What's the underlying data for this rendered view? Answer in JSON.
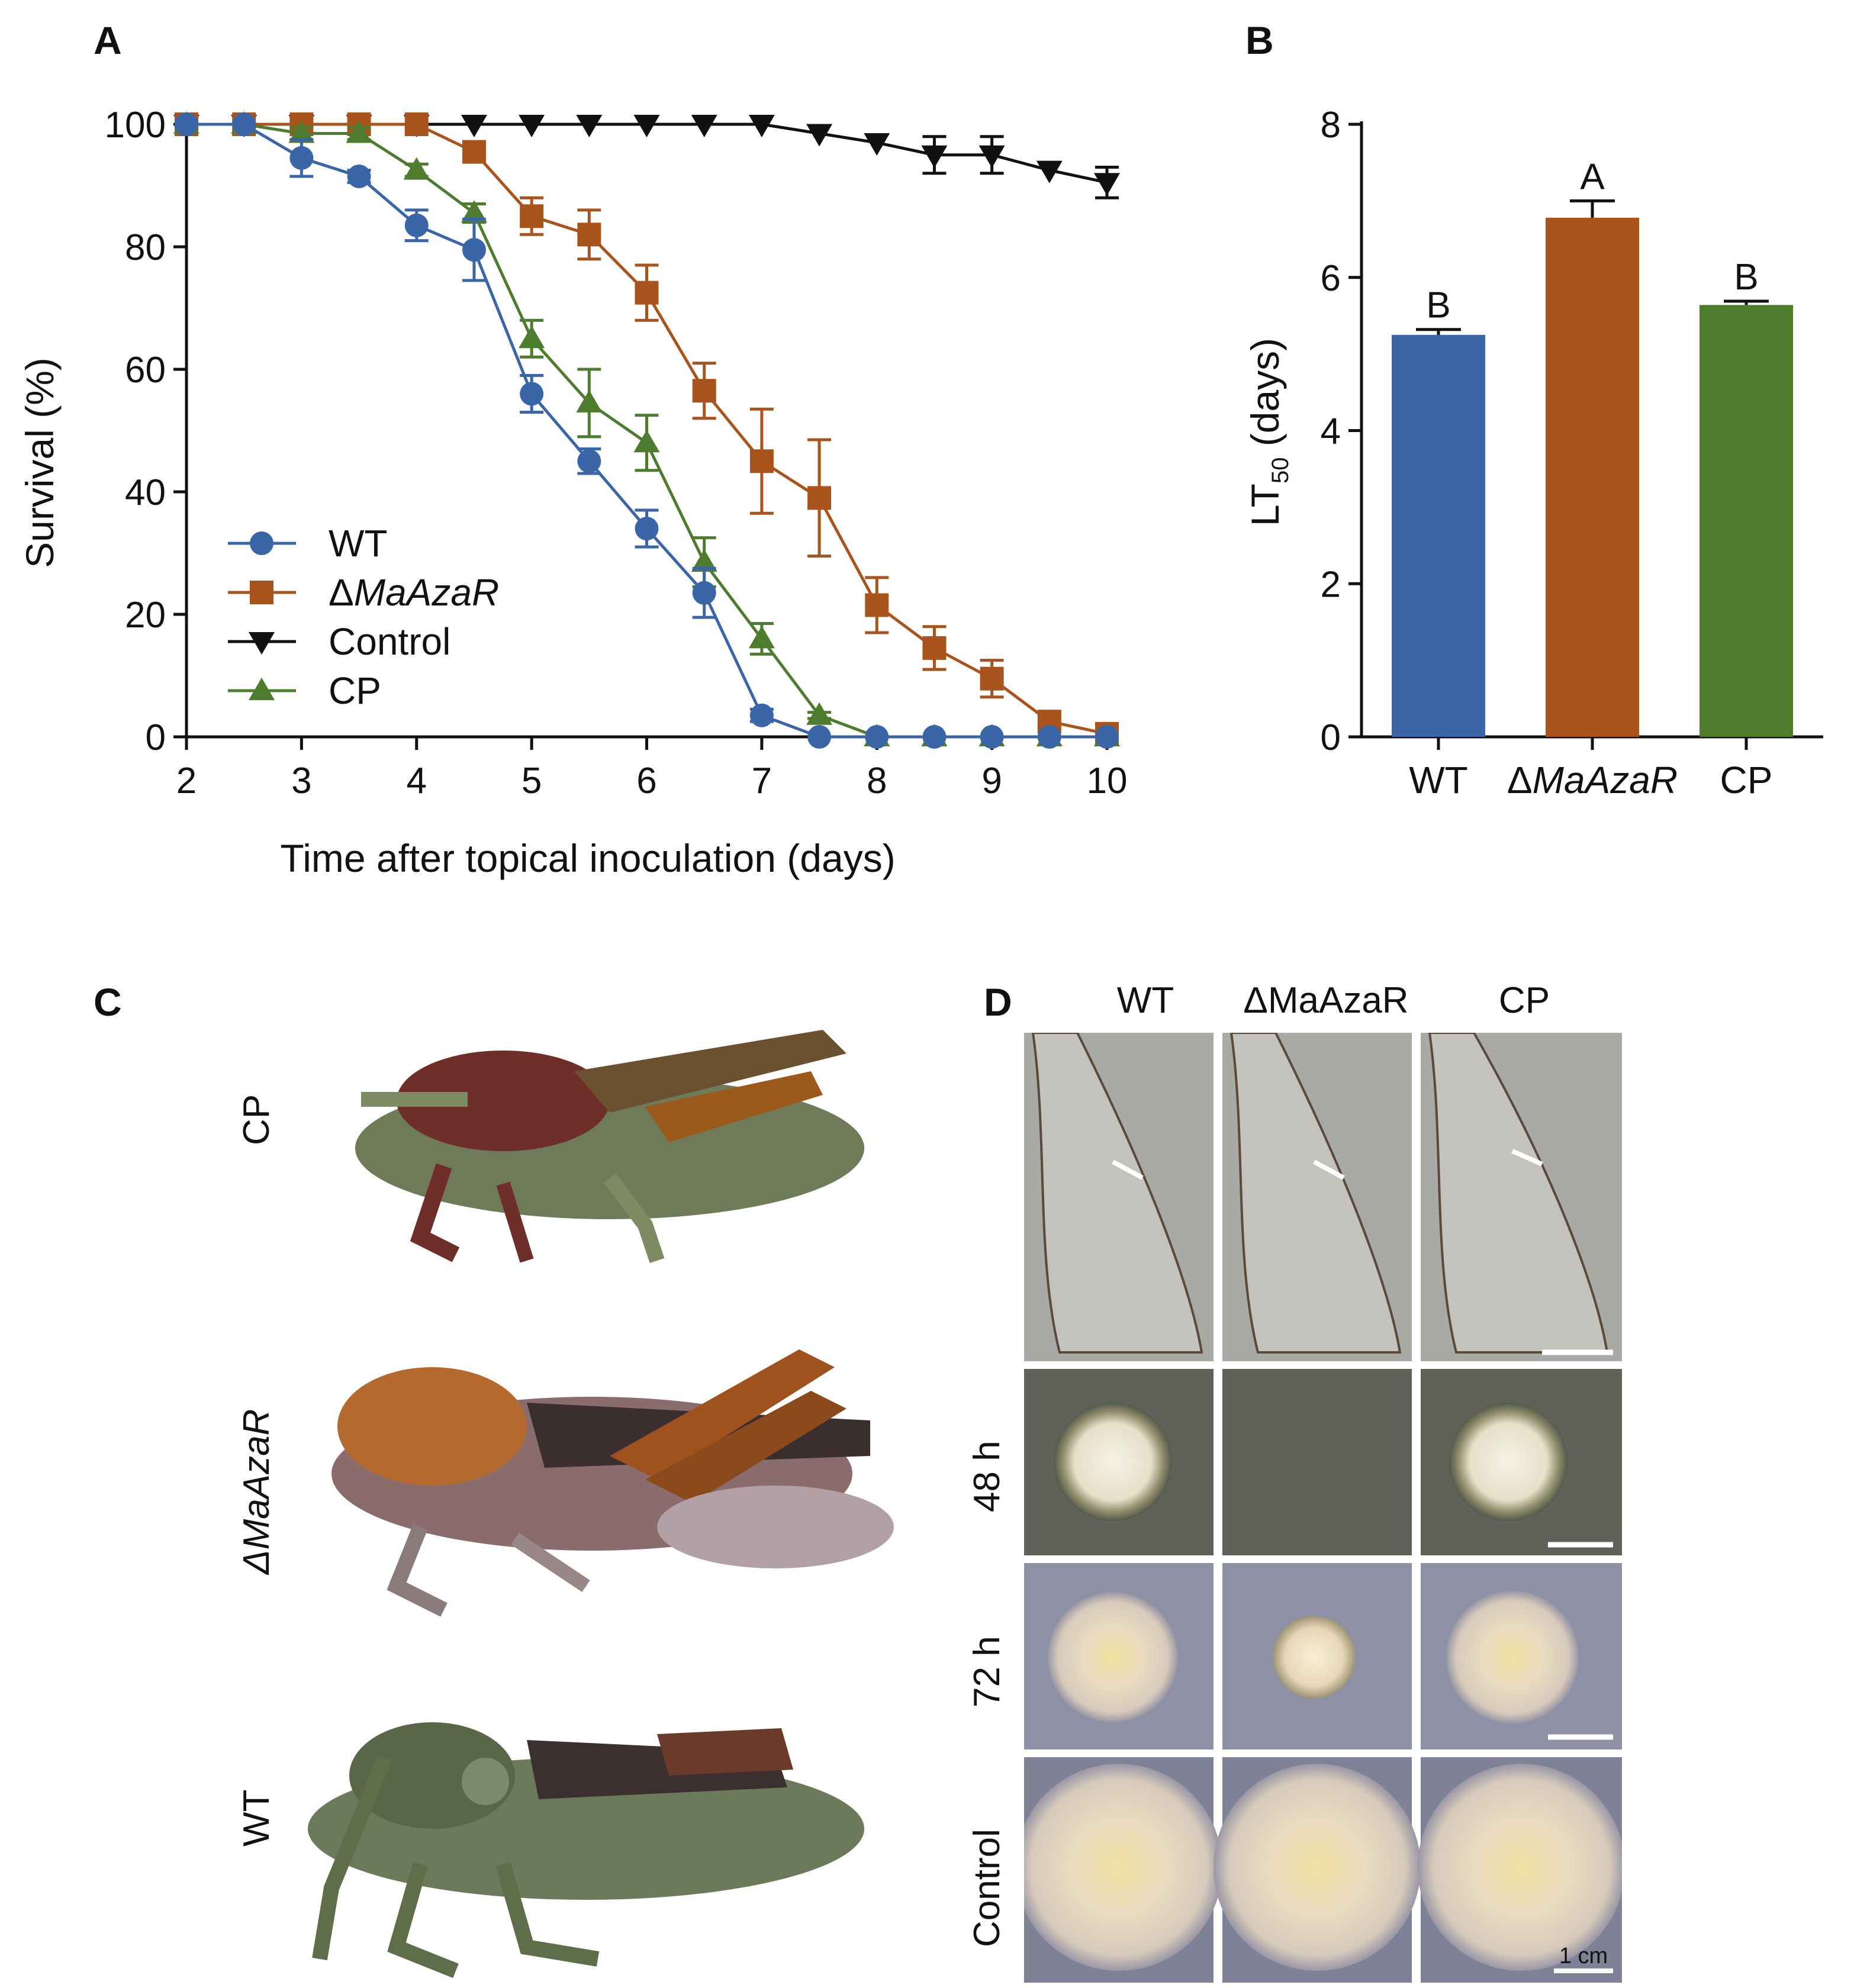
{
  "panels": {
    "A": "A",
    "B": "B",
    "C": "C",
    "D": "D"
  },
  "chart_data": [
    {
      "type": "line",
      "panel": "A",
      "xlabel": "Time after topical inoculation (days)",
      "ylabel": "Survival (%)",
      "xlim": [
        2,
        10
      ],
      "ylim": [
        0,
        100
      ],
      "xticks": [
        2,
        3,
        4,
        5,
        6,
        7,
        8,
        9,
        10
      ],
      "yticks": [
        0,
        20,
        40,
        60,
        80,
        100
      ],
      "legend_position": "lower-left",
      "series": [
        {
          "name": "WT",
          "color": "#3a66a7",
          "marker": "circle",
          "x": [
            2,
            2.5,
            3,
            3.5,
            4,
            4.5,
            5,
            5.5,
            6,
            6.5,
            7,
            7.5,
            8,
            8.5,
            9,
            9.5,
            10
          ],
          "y": [
            100,
            100,
            94.5,
            91.5,
            83.5,
            79.5,
            56,
            45,
            34,
            23.5,
            3.5,
            0,
            0,
            0,
            0,
            0,
            0
          ],
          "err": [
            0,
            0,
            3,
            1,
            2.5,
            5,
            3,
            2,
            3,
            4,
            1,
            0,
            0,
            0,
            0,
            0,
            0
          ]
        },
        {
          "name": "ΔMaAzaR",
          "color": "#a8541c",
          "marker": "square",
          "x": [
            2,
            2.5,
            3,
            3.5,
            4,
            4.5,
            5,
            5.5,
            6,
            6.5,
            7,
            7.5,
            8,
            8.5,
            9,
            9.5,
            10
          ],
          "y": [
            100,
            100,
            100,
            100,
            100,
            95.5,
            85,
            82,
            72.5,
            56.5,
            45,
            39,
            21.5,
            14.5,
            9.5,
            2.5,
            0.5
          ],
          "err": [
            0,
            0,
            0,
            0,
            0,
            1,
            3,
            4,
            4.5,
            4.5,
            8.5,
            9.5,
            4.5,
            3.5,
            3,
            1,
            0
          ]
        },
        {
          "name": "Control",
          "color": "#111111",
          "marker": "triangle-down",
          "x": [
            2,
            2.5,
            3,
            3.5,
            4,
            4.5,
            5,
            5.5,
            6,
            6.5,
            7,
            7.5,
            8,
            8.5,
            9,
            9.5,
            10
          ],
          "y": [
            100,
            100,
            100,
            100,
            100,
            100,
            100,
            100,
            100,
            100,
            100,
            98.5,
            97,
            95,
            95,
            92.5,
            90.5
          ],
          "err": [
            0,
            0,
            0,
            0,
            0,
            0,
            0,
            0,
            0,
            0,
            0,
            0,
            0,
            3,
            3,
            0,
            2.5
          ]
        },
        {
          "name": "CP",
          "color": "#4e7c2f",
          "marker": "triangle-up",
          "x": [
            2,
            2.5,
            3,
            3.5,
            4,
            4.5,
            5,
            5.5,
            6,
            6.5,
            7,
            7.5,
            8,
            8.5,
            9,
            9.5,
            10
          ],
          "y": [
            100,
            100,
            98.5,
            98.5,
            92.5,
            85.5,
            65,
            54.5,
            48,
            28.5,
            16,
            3.5,
            0,
            0,
            0,
            0,
            0
          ],
          "err": [
            0,
            0,
            1,
            1,
            1,
            1.5,
            3,
            5.5,
            4.5,
            4,
            2.5,
            0.5,
            0,
            0,
            0,
            0,
            0
          ]
        }
      ]
    },
    {
      "type": "bar",
      "panel": "B",
      "ylabel_main": "LT",
      "ylabel_sub": "50",
      "ylabel_unit": " (days)",
      "ylim": [
        0,
        8
      ],
      "yticks": [
        0,
        2,
        4,
        6,
        8
      ],
      "categories": [
        "WT",
        "ΔMaAzaR",
        "CP"
      ],
      "values": [
        5.25,
        6.78,
        5.64
      ],
      "err": [
        0.07,
        0.22,
        0.05
      ],
      "colors": [
        "#3a66a7",
        "#a8541c",
        "#4e7c2f"
      ],
      "significance": [
        "B",
        "A",
        "B"
      ]
    }
  ],
  "panel_c": {
    "labels": [
      "CP",
      "ΔMaAzaR",
      "WT"
    ]
  },
  "panel_d": {
    "columns": [
      "WT",
      "ΔMaAzaR",
      "CP"
    ],
    "rows": [
      "",
      "48 h",
      "72 h",
      "Control"
    ],
    "scale_bar_label": "1 cm"
  }
}
